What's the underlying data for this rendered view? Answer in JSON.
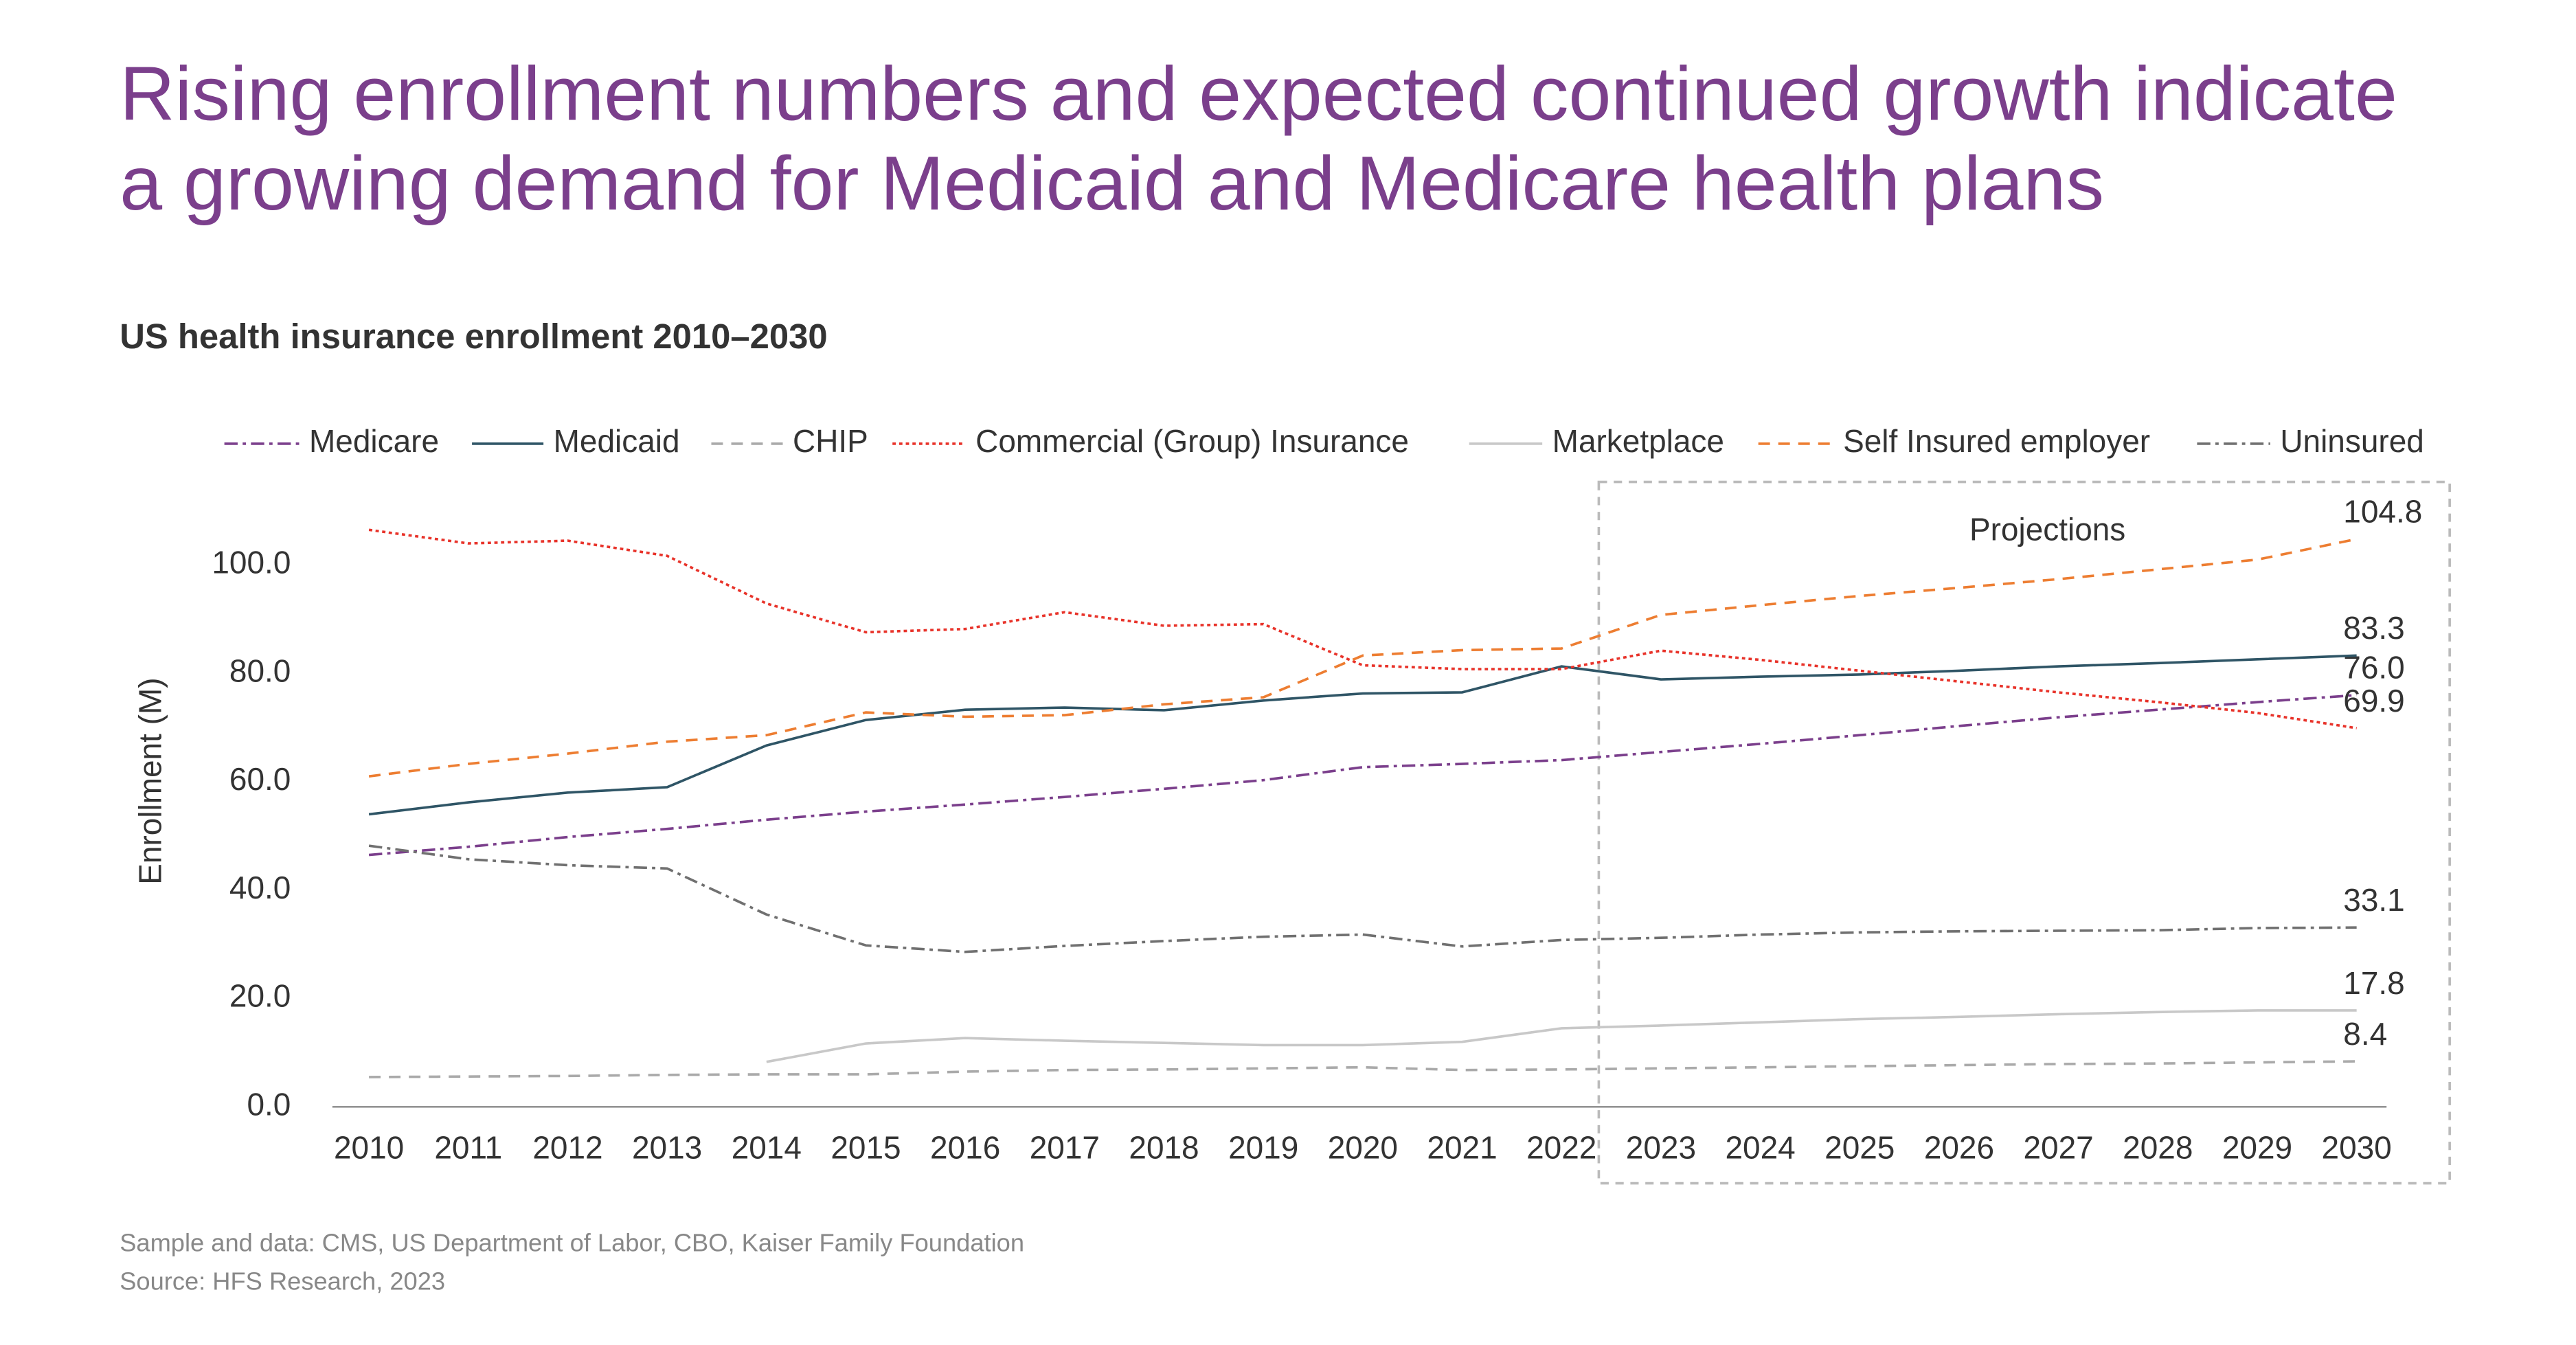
{
  "chart_data": {
    "type": "line",
    "title": [
      "Rising enrollment numbers and expected continued growth indicate",
      "a growing demand for Medicaid and Medicare health plans"
    ],
    "subtitle": "US health insurance enrollment 2010–2030",
    "y_label": "Enrollment (M)",
    "annotation": "Projections",
    "notes": [
      "Sample and data: CMS, US Department of Labor, CBO, Kaiser Family Foundation",
      "Source: HFS Research, 2023"
    ],
    "categories": [
      "2010",
      "2011",
      "2012",
      "2013",
      "2014",
      "2015",
      "2016",
      "2017",
      "2018",
      "2019",
      "2020",
      "2021",
      "2022",
      "2023",
      "2024",
      "2025",
      "2026",
      "2027",
      "2028",
      "2029",
      "2030"
    ],
    "ylim": [
      0,
      110
    ],
    "yticks": [
      {
        "value": 0,
        "label": "0.0"
      },
      {
        "value": 20,
        "label": "20.0"
      },
      {
        "value": 40,
        "label": "40.0"
      },
      {
        "value": 60,
        "label": "60.0"
      },
      {
        "value": 80,
        "label": "80.0"
      },
      {
        "value": 100,
        "label": "100.0"
      }
    ],
    "series": [
      {
        "name": "Medicare",
        "color": "#7b3f8c",
        "style": "dashdot",
        "values": [
          46.5,
          48,
          49.8,
          51.3,
          53,
          54.5,
          55.8,
          57.2,
          58.7,
          60.3,
          62.7,
          63.3,
          64,
          65.5,
          67,
          68.6,
          70.3,
          71.9,
          73.3,
          74.7,
          76.0
        ],
        "value_labels": [
          null,
          null,
          null,
          null,
          null,
          null,
          null,
          null,
          null,
          null,
          null,
          null,
          null,
          null,
          null,
          null,
          null,
          null,
          null,
          null,
          "76.0"
        ]
      },
      {
        "name": "Medicaid",
        "color": "#2f5566",
        "style": "solid",
        "values": [
          54,
          56.2,
          58,
          59,
          66.7,
          71.4,
          73.3,
          73.7,
          73.2,
          75,
          76.3,
          76.5,
          81.3,
          78.9,
          79.4,
          79.8,
          80.5,
          81.3,
          81.9,
          82.6,
          83.3
        ],
        "value_labels": [
          null,
          null,
          null,
          null,
          null,
          null,
          null,
          null,
          null,
          null,
          null,
          null,
          null,
          null,
          null,
          null,
          null,
          null,
          null,
          null,
          "83.3"
        ]
      },
      {
        "name": "CHIP",
        "color": "#aaaaaa",
        "style": "dashed",
        "values": [
          5.5,
          5.6,
          5.7,
          5.9,
          6,
          6,
          6.5,
          6.8,
          6.9,
          7.1,
          7.3,
          6.8,
          6.9,
          7.1,
          7.3,
          7.5,
          7.7,
          7.9,
          8.0,
          8.2,
          8.4
        ],
        "value_labels": [
          null,
          null,
          null,
          null,
          null,
          null,
          null,
          null,
          null,
          null,
          null,
          null,
          null,
          null,
          null,
          null,
          null,
          null,
          null,
          null,
          "8.4"
        ]
      },
      {
        "name": "Commercial (Group) Insurance",
        "color": "#e8332a",
        "style": "dotted",
        "values": [
          106.5,
          104,
          104.5,
          101.7,
          92.9,
          87.6,
          88.2,
          91.3,
          88.8,
          89.1,
          81.5,
          80.8,
          80.8,
          84.2,
          82.5,
          80.5,
          78.5,
          76.5,
          74.7,
          72.7,
          69.9
        ],
        "value_labels": [
          null,
          null,
          null,
          null,
          null,
          null,
          null,
          null,
          null,
          null,
          null,
          null,
          null,
          null,
          null,
          null,
          null,
          null,
          null,
          null,
          "69.9"
        ]
      },
      {
        "name": "Marketplace",
        "color": "#c8c8c8",
        "style": "solid",
        "values": [
          null,
          null,
          null,
          null,
          8.3,
          11.7,
          12.7,
          12.2,
          11.8,
          11.4,
          11.4,
          12,
          14.5,
          15,
          15.6,
          16.2,
          16.6,
          17.1,
          17.5,
          17.8,
          17.8
        ],
        "value_labels": [
          null,
          null,
          null,
          null,
          null,
          null,
          null,
          null,
          null,
          null,
          null,
          null,
          null,
          null,
          null,
          null,
          null,
          null,
          null,
          null,
          "17.8"
        ]
      },
      {
        "name": "Self Insured employer",
        "color": "#ed7d31",
        "style": "dashed",
        "values": [
          61,
          63.3,
          65.2,
          67.4,
          68.6,
          72.8,
          72,
          72.3,
          74.3,
          75.6,
          83.3,
          84.3,
          84.6,
          90.8,
          92.6,
          94.3,
          95.8,
          97.4,
          99.2,
          101,
          104.8
        ],
        "value_labels": [
          null,
          null,
          null,
          null,
          null,
          null,
          null,
          null,
          null,
          null,
          null,
          null,
          null,
          null,
          null,
          null,
          null,
          null,
          null,
          null,
          "104.8"
        ]
      },
      {
        "name": "Uninsured",
        "color": "#707070",
        "style": "dashdot",
        "values": [
          48.2,
          45.7,
          44.6,
          44,
          35.5,
          29.8,
          28.6,
          29.7,
          30.6,
          31.4,
          31.8,
          29.6,
          30.8,
          31.2,
          31.8,
          32.2,
          32.4,
          32.5,
          32.6,
          33,
          33.1
        ],
        "value_labels": [
          null,
          null,
          null,
          null,
          null,
          null,
          null,
          null,
          null,
          null,
          null,
          null,
          null,
          null,
          null,
          null,
          null,
          null,
          null,
          null,
          "33.1"
        ]
      }
    ]
  }
}
